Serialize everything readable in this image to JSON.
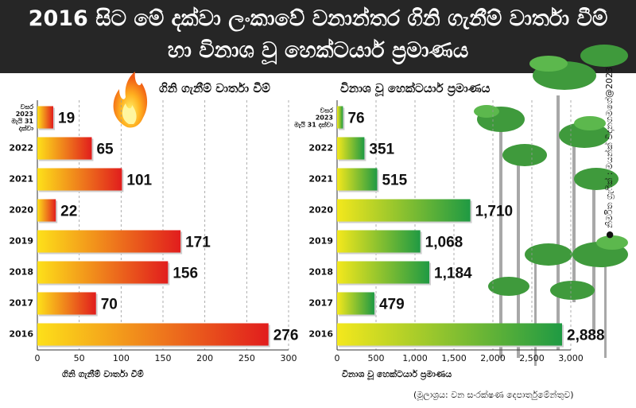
{
  "header": {
    "line1": "2016 සිට මේ දක්වා ලංකාවේ වනාන්තර ගිනි ගැනීම් වාර්තා වීම්",
    "line2": "හා විනාශ වූ හෙක්ටයාර් ප්‍රමාණය"
  },
  "credit": "● නිර්මිත ග්‍රැෆික් : මයන්ක් විදානගමගේ@2023",
  "source": "(මූලාශ්‍රය: වන සංරක්ෂණ දෙපාර්තුමේන්තුව)",
  "colors": {
    "header_bg": "#262626",
    "fire_bar_start": "#fde01a",
    "fire_bar_end": "#e11d1d",
    "forest_bar_start": "#f4e81c",
    "forest_bar_end": "#1f9a43",
    "grid": "#9a9a9a"
  },
  "chart_data": [
    {
      "type": "bar",
      "orientation": "horizontal",
      "title": "ගිනි ගැනීම් වාර්තා වීම්",
      "xlabel": "ගිනි ගැනීම් වාර්තා වීම්",
      "categories": [
        "වසර 2023 මැයි 31 දක්වා",
        "2022",
        "2021",
        "2020",
        "2019",
        "2018",
        "2017",
        "2016"
      ],
      "category_lines": [
        [
          "වසර",
          "2023",
          "මැයි 31",
          "දක්වා"
        ],
        [
          "2022"
        ],
        [
          "2021"
        ],
        [
          "2020"
        ],
        [
          "2019"
        ],
        [
          "2018"
        ],
        [
          "2017"
        ],
        [
          "2016"
        ]
      ],
      "values": [
        19,
        65,
        101,
        22,
        171,
        156,
        70,
        276
      ],
      "value_labels": [
        "19",
        "65",
        "101",
        "22",
        "171",
        "156",
        "70",
        "276"
      ],
      "xlim": [
        0,
        300
      ],
      "xticks": [
        0,
        50,
        100,
        150,
        200,
        250,
        300
      ],
      "xtick_labels": [
        "0",
        "50",
        "100",
        "150",
        "200",
        "250",
        "300"
      ],
      "grid": true
    },
    {
      "type": "bar",
      "orientation": "horizontal",
      "title": "විනාශ වූ හෙක්ටයාර් ප්‍රමාණය",
      "xlabel": "විනාශ වූ හෙක්ටයාර් ප්‍රමාණය",
      "categories": [
        "වසර 2023 මැයි 31 දක්වා",
        "2022",
        "2021",
        "2020",
        "2019",
        "2018",
        "2017",
        "2016"
      ],
      "category_lines": [
        [
          "වසර",
          "2023",
          "මැයි 31 දක්වා"
        ],
        [
          "2022"
        ],
        [
          "2021"
        ],
        [
          "2020"
        ],
        [
          "2019"
        ],
        [
          "2018"
        ],
        [
          "2017"
        ],
        [
          "2016"
        ]
      ],
      "values": [
        76,
        351,
        515,
        1710,
        1068,
        1184,
        479,
        2888
      ],
      "value_labels": [
        "76",
        "351",
        "515",
        "1,710",
        "1,068",
        "1,184",
        "479",
        "2,888"
      ],
      "xlim": [
        0,
        3000
      ],
      "xticks": [
        0,
        500,
        1000,
        1500,
        2000,
        2500,
        3000
      ],
      "xtick_labels": [
        "0",
        "500",
        "1,000",
        "1,500",
        "2,000",
        "2,500",
        "3,000"
      ],
      "grid": true
    }
  ]
}
